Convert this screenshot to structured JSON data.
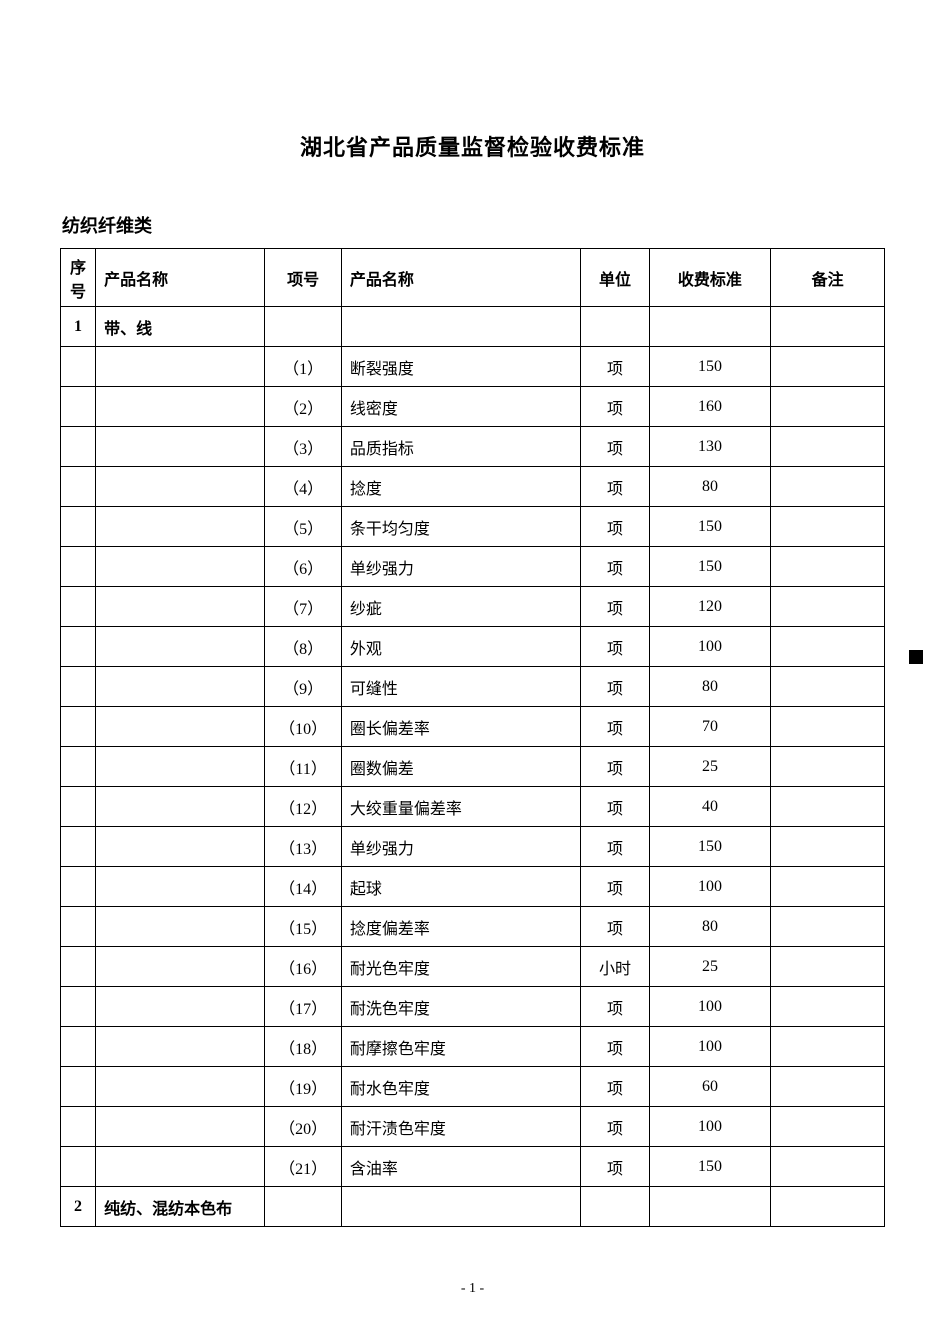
{
  "doc_title": "湖北省产品质量监督检验收费标准",
  "category_label": "纺织纤维类",
  "page_number": "- 1 -",
  "table": {
    "headers": {
      "seq": "序号",
      "name": "产品名称",
      "item": "项号",
      "desc": "产品名称",
      "unit": "单位",
      "fee": "收费标准",
      "note": "备注"
    },
    "rows": [
      {
        "seq": "1",
        "name": "带、线",
        "item": "",
        "desc": "",
        "unit": "",
        "fee": "",
        "note": ""
      },
      {
        "seq": "",
        "name": "",
        "item": "（1）",
        "desc": "断裂强度",
        "unit": "项",
        "fee": "150",
        "note": ""
      },
      {
        "seq": "",
        "name": "",
        "item": "（2）",
        "desc": "线密度",
        "unit": "项",
        "fee": "160",
        "note": ""
      },
      {
        "seq": "",
        "name": "",
        "item": "（3）",
        "desc": "品质指标",
        "unit": "项",
        "fee": "130",
        "note": ""
      },
      {
        "seq": "",
        "name": "",
        "item": "（4）",
        "desc": "捻度",
        "unit": "项",
        "fee": "80",
        "note": ""
      },
      {
        "seq": "",
        "name": "",
        "item": "（5）",
        "desc": "条干均匀度",
        "unit": "项",
        "fee": "150",
        "note": ""
      },
      {
        "seq": "",
        "name": "",
        "item": "（6）",
        "desc": "单纱强力",
        "unit": "项",
        "fee": "150",
        "note": ""
      },
      {
        "seq": "",
        "name": "",
        "item": "（7）",
        "desc": "纱疵",
        "unit": "项",
        "fee": "120",
        "note": ""
      },
      {
        "seq": "",
        "name": "",
        "item": "（8）",
        "desc": "外观",
        "unit": "项",
        "fee": "100",
        "note": ""
      },
      {
        "seq": "",
        "name": "",
        "item": "（9）",
        "desc": "可缝性",
        "unit": "项",
        "fee": "80",
        "note": ""
      },
      {
        "seq": "",
        "name": "",
        "item": "（10）",
        "desc": "圈长偏差率",
        "unit": "项",
        "fee": "70",
        "note": ""
      },
      {
        "seq": "",
        "name": "",
        "item": "（11）",
        "desc": "圈数偏差",
        "unit": "项",
        "fee": "25",
        "note": ""
      },
      {
        "seq": "",
        "name": "",
        "item": "（12）",
        "desc": "大绞重量偏差率",
        "unit": "项",
        "fee": "40",
        "note": ""
      },
      {
        "seq": "",
        "name": "",
        "item": "（13）",
        "desc": "单纱强力",
        "unit": "项",
        "fee": "150",
        "note": ""
      },
      {
        "seq": "",
        "name": "",
        "item": "（14）",
        "desc": "起球",
        "unit": "项",
        "fee": "100",
        "note": ""
      },
      {
        "seq": "",
        "name": "",
        "item": "（15）",
        "desc": "捻度偏差率",
        "unit": "项",
        "fee": "80",
        "note": ""
      },
      {
        "seq": "",
        "name": "",
        "item": "（16）",
        "desc": "耐光色牢度",
        "unit": "小时",
        "fee": "25",
        "note": ""
      },
      {
        "seq": "",
        "name": "",
        "item": "（17）",
        "desc": "耐洗色牢度",
        "unit": "项",
        "fee": "100",
        "note": ""
      },
      {
        "seq": "",
        "name": "",
        "item": "（18）",
        "desc": "耐摩擦色牢度",
        "unit": "项",
        "fee": "100",
        "note": ""
      },
      {
        "seq": "",
        "name": "",
        "item": "（19）",
        "desc": "耐水色牢度",
        "unit": "项",
        "fee": "60",
        "note": ""
      },
      {
        "seq": "",
        "name": "",
        "item": "（20）",
        "desc": "耐汗渍色牢度",
        "unit": "项",
        "fee": "100",
        "note": ""
      },
      {
        "seq": "",
        "name": "",
        "item": "（21）",
        "desc": "含油率",
        "unit": "项",
        "fee": "150",
        "note": ""
      },
      {
        "seq": "2",
        "name": "纯纺、混纺本色布",
        "item": "",
        "desc": "",
        "unit": "",
        "fee": "",
        "note": ""
      }
    ]
  }
}
